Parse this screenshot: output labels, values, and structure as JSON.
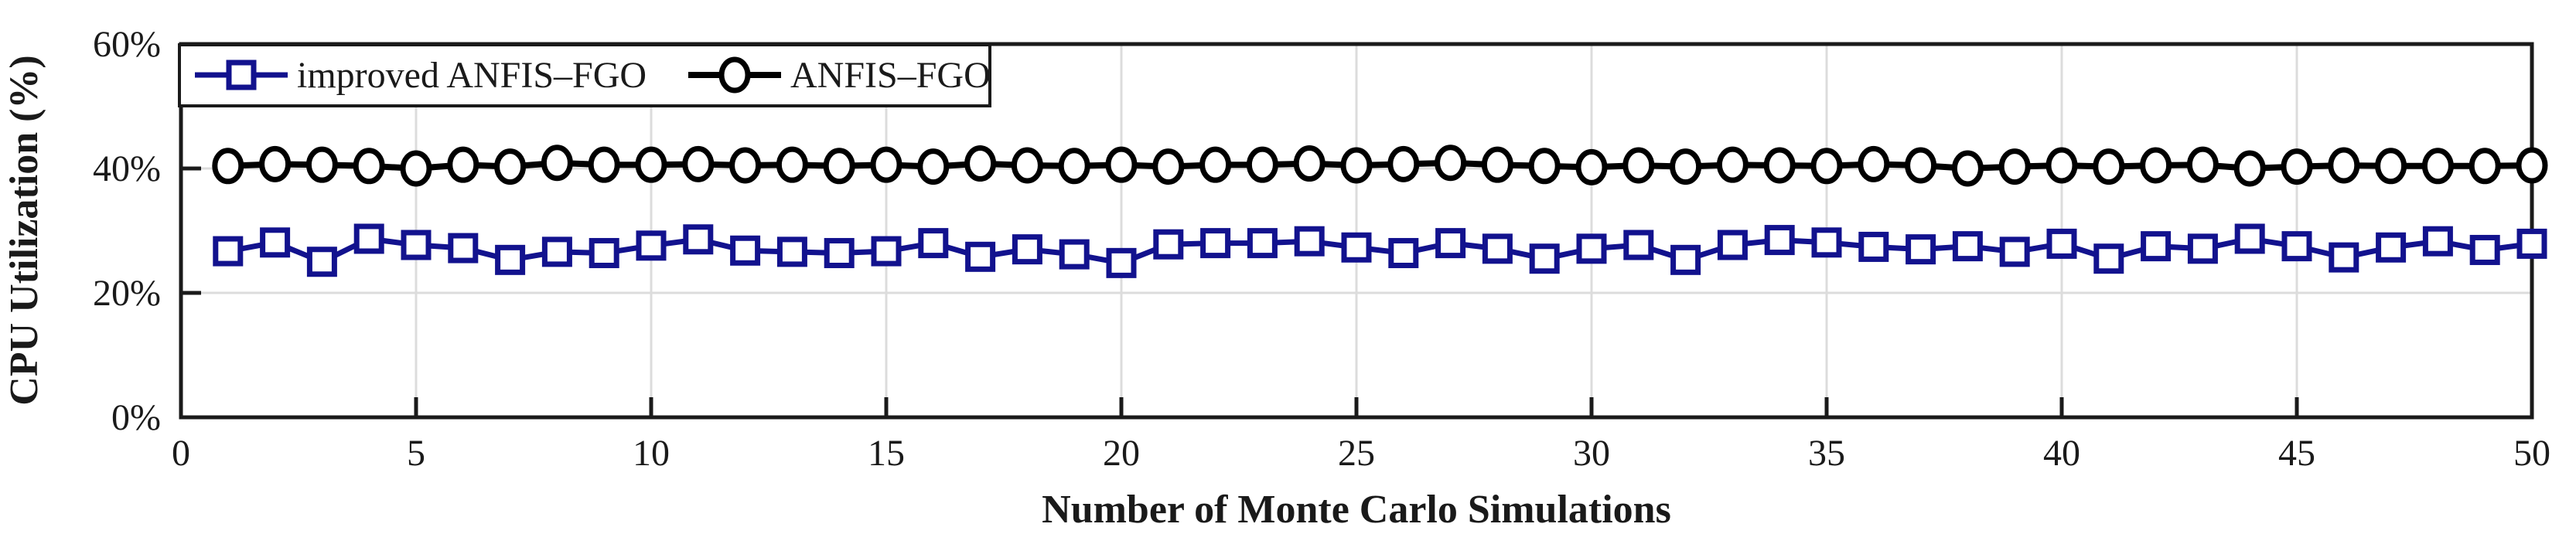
{
  "figure": {
    "background": "#ffffff",
    "plot_background": "#ffffff"
  },
  "chart_data": {
    "type": "line",
    "title": "",
    "xlabel": "Number of Monte Carlo Simulations",
    "ylabel": "CPU Utilization (%)",
    "xlim": [
      0,
      50
    ],
    "ylim": [
      0,
      60
    ],
    "xticks": [
      0,
      5,
      10,
      15,
      20,
      25,
      30,
      35,
      40,
      45,
      50
    ],
    "xtick_labels": [
      "0",
      "5",
      "10",
      "15",
      "20",
      "25",
      "30",
      "35",
      "40",
      "45",
      "50"
    ],
    "yticks": [
      0,
      20,
      40,
      60
    ],
    "ytick_labels": [
      "0%",
      "20%",
      "40%",
      "60%"
    ],
    "grid": true,
    "legend_position": "top-left-inside",
    "x": [
      1,
      2,
      3,
      4,
      5,
      6,
      7,
      8,
      9,
      10,
      11,
      12,
      13,
      14,
      15,
      16,
      17,
      18,
      19,
      20,
      21,
      22,
      23,
      24,
      25,
      26,
      27,
      28,
      29,
      30,
      31,
      32,
      33,
      34,
      35,
      36,
      37,
      38,
      39,
      40,
      41,
      42,
      43,
      44,
      45,
      46,
      47,
      48,
      49,
      50
    ],
    "series": [
      {
        "name": "improved ANFIS–FGO",
        "color": "#12128E",
        "marker": "square",
        "line_width": 7,
        "values": [
          26.7,
          28.1,
          25.0,
          28.7,
          27.7,
          27.2,
          25.3,
          26.6,
          26.4,
          27.6,
          28.6,
          26.8,
          26.6,
          26.4,
          26.7,
          28.0,
          25.8,
          27.0,
          26.2,
          24.8,
          27.8,
          28.0,
          28.0,
          28.3,
          27.3,
          26.4,
          28.0,
          27.1,
          25.5,
          27.1,
          27.7,
          25.3,
          27.7,
          28.5,
          28.1,
          27.4,
          27.0,
          27.5,
          26.6,
          27.9,
          25.5,
          27.5,
          27.1,
          28.7,
          27.5,
          25.7,
          27.3,
          28.3,
          26.9,
          27.9
        ]
      },
      {
        "name": "ANFIS–FGO",
        "color": "#000000",
        "marker": "circle",
        "line_width": 8,
        "values": [
          40.4,
          40.7,
          40.6,
          40.4,
          40.0,
          40.6,
          40.3,
          40.9,
          40.6,
          40.6,
          40.7,
          40.5,
          40.6,
          40.4,
          40.6,
          40.3,
          40.8,
          40.5,
          40.4,
          40.6,
          40.3,
          40.6,
          40.6,
          40.8,
          40.5,
          40.7,
          40.9,
          40.6,
          40.4,
          40.2,
          40.5,
          40.3,
          40.6,
          40.5,
          40.4,
          40.7,
          40.5,
          40.0,
          40.3,
          40.5,
          40.3,
          40.5,
          40.6,
          40.0,
          40.3,
          40.5,
          40.4,
          40.4,
          40.4,
          40.5
        ]
      }
    ],
    "colors": {
      "grid": "#dcdcdc",
      "axis": "#1a1a1a",
      "tick_text": "#1a1a1a",
      "legend_background": "#ffffff",
      "legend_border": "#1a1a1a"
    }
  }
}
